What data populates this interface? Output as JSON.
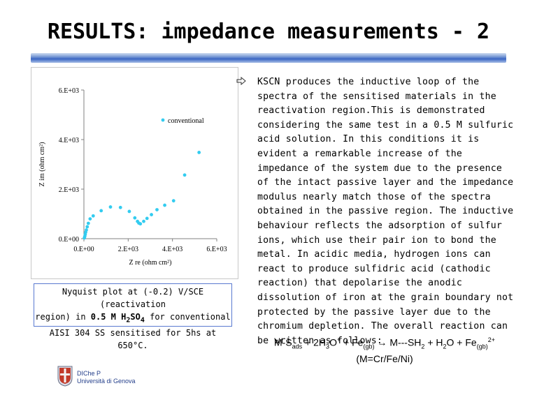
{
  "slide": {
    "title": "RESULTS: impedance measurements - 2",
    "caption_line1": "Nyquist plot at (-0.2) V/SCE (reactivation",
    "caption_line2_pre": "region) in ",
    "caption_line2_conc": "0.5 M H",
    "caption_line2_h2sub": "2",
    "caption_line2_so": "SO",
    "caption_line2_so4sub": "4",
    "caption_line2_post": " for conventional",
    "caption_line3": "AISI 304 SS sensitised for 5hs at 650°C.",
    "bullet_icon": "arrow-right-icon",
    "body": "KSCN produces the inductive loop of the spectra of the sensitised materials in the reactivation region.This is demonstrated considering the same test in a 0.5 M sulfuric acid solution. In this conditions it is evident a remarkable increase of the impedance of the system due to the presence of the intact passive layer and the impedance modulus nearly match those of the spectra obtained in the passive region. The inductive behaviour reflects the adsorption of sulfur ions, which use their pair ion to bond the metal. In acidic media, hydrogen ions can react to produce sulfidric acid (cathodic reaction) that depolarise the anodic dissolution of iron at the grain boundary not protected by the passive layer due to the chromium depletion. The overall reaction can be written as follows:",
    "equation": {
      "m1": "M-S",
      "ads": "ads",
      "plus1": " + 2H",
      "h3sub": "3",
      "o": "O",
      "plus_sup": "+",
      "plus2": " + Fe",
      "gb1": "(gb)",
      "arrow": " → ",
      "m2": "M---SH",
      "sh2sub": "2",
      "plus3": " + H",
      "h2sub": "2",
      "o2": "O + Fe",
      "gb2": "(gb)",
      "sup2": "2+",
      "line2": "(M=Cr/Fe/Ni)"
    },
    "footer": {
      "line1": "DIChe P",
      "line2": "Università di Genova",
      "logo_icon": "university-crest-icon"
    }
  },
  "colors": {
    "series": "#33ccf0",
    "title_bar": "#3a66c4",
    "caption_border": "#5a7ad0"
  },
  "chart_data": {
    "type": "scatter",
    "xlabel": "Z re (ohm cm²)",
    "ylabel": "Z im (ohm cm²)",
    "xlim": [
      0,
      6000
    ],
    "ylim": [
      0,
      6000
    ],
    "x_ticks": [
      0,
      2000,
      4000,
      6000
    ],
    "y_ticks": [
      0,
      2000,
      4000,
      6000
    ],
    "x_tick_labels": [
      "0.E+00",
      "2.E+03",
      "4.E+03",
      "6.E+03"
    ],
    "y_tick_labels": [
      "0.E+00",
      "2.E+03",
      "4.E+03",
      "6.E+03"
    ],
    "grid": false,
    "legend_position": "top-right",
    "series": [
      {
        "name": "conventional",
        "x": [
          20,
          40,
          60,
          80,
          110,
          150,
          200,
          280,
          420,
          780,
          1200,
          1650,
          2050,
          2300,
          2420,
          2480,
          2550,
          2700,
          2850,
          3050,
          3300,
          3650,
          4050,
          4550,
          5200
        ],
        "y": [
          30,
          90,
          170,
          260,
          350,
          480,
          620,
          800,
          920,
          1130,
          1280,
          1260,
          1100,
          840,
          700,
          630,
          600,
          700,
          820,
          970,
          1170,
          1350,
          1530,
          2570,
          3480
        ]
      }
    ]
  }
}
